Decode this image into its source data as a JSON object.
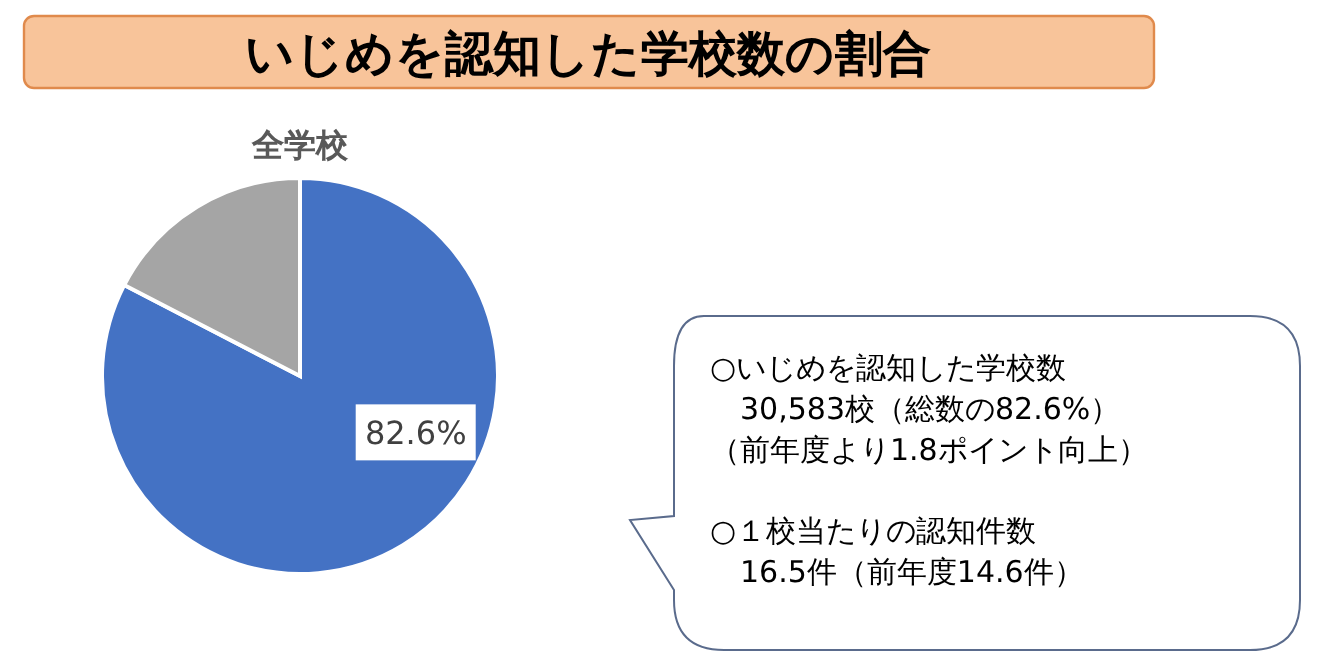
{
  "chart_data": {
    "type": "pie",
    "title": "いじめを認知した学校数の割合",
    "subtitle": "全学校",
    "categories": [
      null,
      null
    ],
    "values": [
      82.6,
      17.4
    ],
    "colors": [
      "#4472c4",
      "#a5a5a5"
    ],
    "value_labels": [
      "82.6%",
      null
    ],
    "annotations": [
      "○いじめを認知した学校数",
      "　30,583校（総数の82.6%）",
      "（前年度より1.8ポイント向上）",
      "○１校当たりの認知件数",
      "　16.5件（前年度14.6件）"
    ]
  }
}
